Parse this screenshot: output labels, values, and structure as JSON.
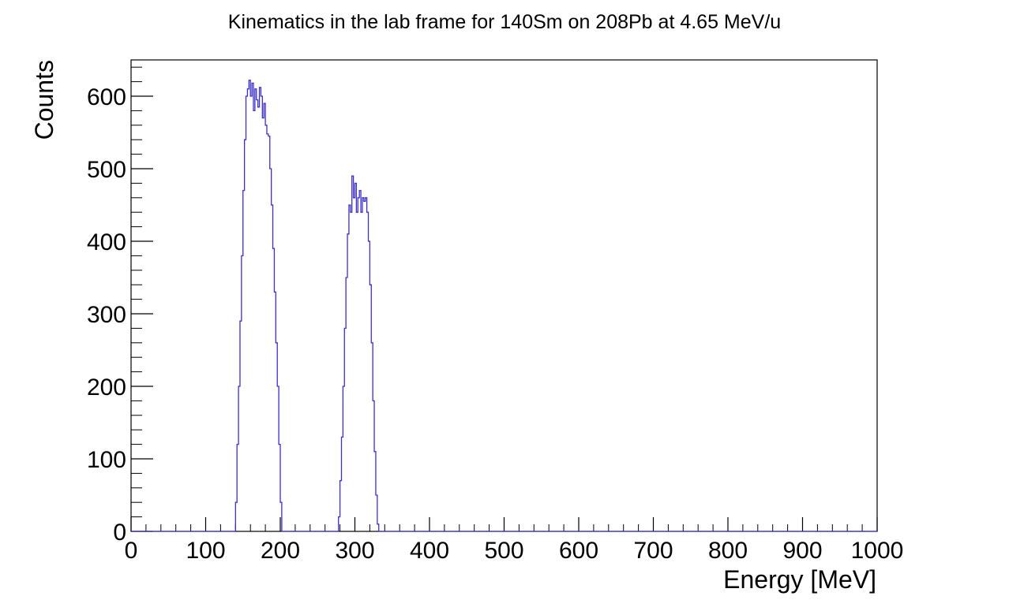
{
  "chart_data": {
    "type": "histogram",
    "title": "Kinematics in the lab frame for 140Sm on 208Pb at 4.65 MeV/u",
    "xlabel": "Energy [MeV]",
    "ylabel": "Counts",
    "xlim": [
      0,
      1000
    ],
    "ylim": [
      0,
      650
    ],
    "x_ticks": [
      "0",
      "100",
      "200",
      "300",
      "400",
      "500",
      "600",
      "700",
      "800",
      "900",
      "1000"
    ],
    "y_ticks": [
      "0",
      "100",
      "200",
      "300",
      "400",
      "500",
      "600"
    ],
    "grid": false,
    "line_color": "#3d2fc8",
    "bins": [
      [
        130,
        0
      ],
      [
        132,
        0
      ],
      [
        134,
        0
      ],
      [
        136,
        0
      ],
      [
        138,
        0
      ],
      [
        140,
        40
      ],
      [
        142,
        120
      ],
      [
        144,
        200
      ],
      [
        146,
        290
      ],
      [
        148,
        380
      ],
      [
        150,
        470
      ],
      [
        152,
        540
      ],
      [
        154,
        600
      ],
      [
        156,
        610
      ],
      [
        158,
        622
      ],
      [
        160,
        600
      ],
      [
        162,
        618
      ],
      [
        164,
        580
      ],
      [
        166,
        610
      ],
      [
        168,
        595
      ],
      [
        170,
        585
      ],
      [
        172,
        612
      ],
      [
        174,
        600
      ],
      [
        176,
        570
      ],
      [
        178,
        590
      ],
      [
        180,
        560
      ],
      [
        182,
        548
      ],
      [
        184,
        545
      ],
      [
        186,
        500
      ],
      [
        188,
        450
      ],
      [
        190,
        390
      ],
      [
        192,
        330
      ],
      [
        194,
        260
      ],
      [
        196,
        200
      ],
      [
        198,
        120
      ],
      [
        200,
        40
      ],
      [
        202,
        0
      ],
      [
        204,
        0
      ],
      [
        270,
        0
      ],
      [
        272,
        0
      ],
      [
        274,
        0
      ],
      [
        276,
        0
      ],
      [
        278,
        20
      ],
      [
        280,
        70
      ],
      [
        282,
        130
      ],
      [
        284,
        200
      ],
      [
        286,
        280
      ],
      [
        288,
        350
      ],
      [
        290,
        410
      ],
      [
        292,
        450
      ],
      [
        294,
        440
      ],
      [
        296,
        490
      ],
      [
        298,
        460
      ],
      [
        300,
        480
      ],
      [
        302,
        440
      ],
      [
        304,
        460
      ],
      [
        306,
        470
      ],
      [
        308,
        440
      ],
      [
        310,
        460
      ],
      [
        312,
        455
      ],
      [
        314,
        460
      ],
      [
        316,
        440
      ],
      [
        318,
        400
      ],
      [
        320,
        340
      ],
      [
        322,
        260
      ],
      [
        324,
        180
      ],
      [
        326,
        110
      ],
      [
        328,
        50
      ],
      [
        330,
        10
      ],
      [
        332,
        0
      ],
      [
        334,
        0
      ]
    ]
  }
}
